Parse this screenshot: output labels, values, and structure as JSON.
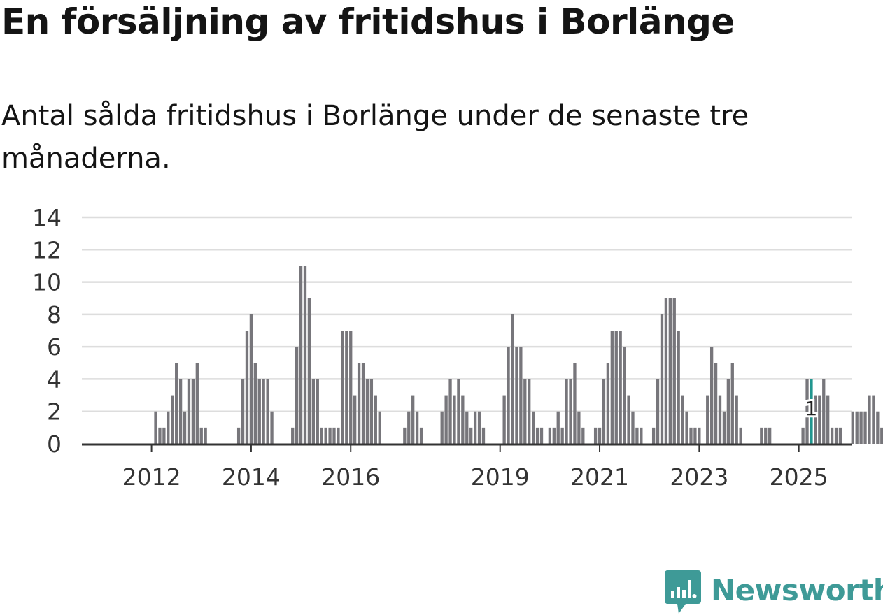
{
  "title": "En försäljning av fritidshus i Borlänge",
  "subtitle": "Antal sålda fritidshus i Borlänge under de senaste tre månaderna.",
  "brand": "Newsworthy",
  "colors": {
    "bar": "#77767b",
    "highlight": "#21968f",
    "grid": "#dddddd",
    "axis": "#333333",
    "brand": "#3e9a97"
  },
  "chart_data": {
    "type": "bar",
    "title": "En försäljning av fritidshus i Borlänge",
    "xlabel": "",
    "ylabel": "",
    "ylim": [
      0,
      14
    ],
    "y_ticks": [
      "0",
      "2",
      "4",
      "6",
      "8",
      "10",
      "12",
      "14"
    ],
    "x_ticks": [
      {
        "label": "2012",
        "index": 8.5
      },
      {
        "label": "2014",
        "index": 32.5
      },
      {
        "label": "2016",
        "index": 56.5
      },
      {
        "label": "2019",
        "index": 92.5
      },
      {
        "label": "2021",
        "index": 116.5
      },
      {
        "label": "2023",
        "index": 140.5
      },
      {
        "label": "2025",
        "index": 164.5
      }
    ],
    "series": [
      {
        "name": "Antal sålda fritidshus",
        "values": [
          0,
          0,
          0,
          0,
          0,
          0,
          0,
          0,
          0,
          2,
          1,
          1,
          2,
          3,
          5,
          4,
          2,
          4,
          4,
          5,
          1,
          1,
          0,
          0,
          0,
          0,
          0,
          0,
          0,
          1,
          4,
          7,
          8,
          5,
          4,
          4,
          4,
          2,
          0,
          0,
          0,
          0,
          1,
          6,
          11,
          11,
          9,
          4,
          4,
          1,
          1,
          1,
          1,
          1,
          7,
          7,
          7,
          3,
          5,
          5,
          4,
          4,
          3,
          2,
          0,
          0,
          0,
          0,
          0,
          1,
          2,
          3,
          2,
          1,
          0,
          0,
          0,
          0,
          2,
          3,
          4,
          3,
          4,
          3,
          2,
          1,
          2,
          2,
          1,
          0,
          0,
          0,
          0,
          3,
          6,
          8,
          6,
          6,
          4,
          4,
          2,
          1,
          1,
          0,
          1,
          1,
          2,
          1,
          4,
          4,
          5,
          2,
          1,
          0,
          0,
          1,
          1,
          4,
          5,
          7,
          7,
          7,
          6,
          3,
          2,
          1,
          1,
          0,
          0,
          1,
          4,
          8,
          9,
          9,
          9,
          7,
          3,
          2,
          1,
          1,
          1,
          0,
          3,
          6,
          5,
          3,
          2,
          4,
          5,
          3,
          1,
          0,
          0,
          0,
          0,
          1,
          1,
          1,
          0,
          0,
          0,
          0,
          0,
          0,
          0,
          1,
          4,
          4,
          3,
          3,
          4,
          3,
          1,
          1,
          1,
          0,
          0,
          2,
          2,
          2,
          2,
          3,
          3,
          2,
          1
        ]
      }
    ],
    "highlight_index": 167,
    "annotations": [
      {
        "label": "1",
        "index": 167,
        "value": 1
      }
    ]
  }
}
